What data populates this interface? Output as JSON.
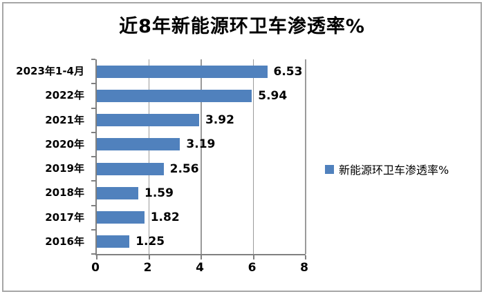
{
  "chart_data": {
    "type": "bar",
    "orientation": "horizontal",
    "title": "近8年新能源环卫车渗透率%",
    "categories": [
      "2023年1-4月",
      "2022年",
      "2021年",
      "2020年",
      "2019年",
      "2018年",
      "2017年",
      "2016年"
    ],
    "values": [
      6.53,
      5.94,
      3.92,
      3.19,
      2.56,
      1.59,
      1.82,
      1.25
    ],
    "value_labels": [
      "6.53",
      "5.94",
      "3.92",
      "3.19",
      "2.56",
      "1.59",
      "1.82",
      "1.25"
    ],
    "xlabel": "",
    "ylabel": "",
    "xlim": [
      0,
      8
    ],
    "x_ticks": [
      "0",
      "2",
      "4",
      "6",
      "8"
    ],
    "grid": true,
    "legend_position": "right",
    "legend": [
      {
        "label": "新能源环卫车渗透率%",
        "color": "#5081BD"
      }
    ],
    "bar_color": "#5081BD",
    "axis_color": "#808080",
    "gridline_color": "#9a9a9a",
    "frame_border_color": "#a6a6a6"
  }
}
